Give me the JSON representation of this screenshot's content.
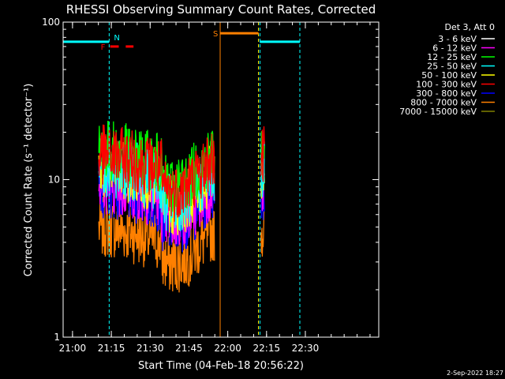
{
  "chart_data": {
    "type": "line",
    "title": "RHESSI Observing Summary Count Rates, Corrected",
    "xlabel": "Start Time (04-Feb-18 20:56:22)",
    "ylabel": "Corrected Count Rate (s⁻¹ detector⁻¹)",
    "yscale": "log",
    "ylim": [
      1,
      100
    ],
    "y_ticks": [
      1,
      10,
      100
    ],
    "x_unit": "minutes after 20:56:22",
    "xlim": [
      0,
      122
    ],
    "x_ticks": [
      {
        "t": 3.63,
        "label": "21:00"
      },
      {
        "t": 18.63,
        "label": "21:15"
      },
      {
        "t": 33.63,
        "label": "21:30"
      },
      {
        "t": 48.63,
        "label": "21:45"
      },
      {
        "t": 63.63,
        "label": "22:00"
      },
      {
        "t": 78.63,
        "label": "22:15"
      },
      {
        "t": 93.63,
        "label": "22:30"
      }
    ],
    "legend_header": "Det 3, Att 0",
    "legend_position": "outside-right",
    "series": [
      {
        "name": "3 - 6 keV",
        "color": "#ffffff",
        "level": 0
      },
      {
        "name": "6 - 12 keV",
        "color": "#ff00ff",
        "level": 8.5
      },
      {
        "name": "12 - 25 keV",
        "color": "#00ff00",
        "level": 14
      },
      {
        "name": "25 - 50 keV",
        "color": "#00ffff",
        "level": 11
      },
      {
        "name": "50 - 100 keV",
        "color": "#ffff00",
        "level": 10.5
      },
      {
        "name": "100 - 300 keV",
        "color": "#ff0000",
        "level": 13
      },
      {
        "name": "300 - 800 keV",
        "color": "#0000ff",
        "level": 8
      },
      {
        "name": "800 - 7000 keV",
        "color": "#ff8000",
        "level": 4.5
      },
      {
        "name": "7000 - 15000 keV",
        "color": "#808000",
        "level": 0
      }
    ],
    "segments": [
      {
        "start": 13.8,
        "end": 58.5
      },
      {
        "start": 76.5,
        "end": 77.8
      }
    ],
    "flags": [
      {
        "label": "N",
        "color": "#00ffff",
        "y": 75,
        "ranges": [
          [
            0,
            17.8
          ],
          [
            76,
            91.5
          ]
        ]
      },
      {
        "label": "S",
        "color": "#ff8000",
        "y": 85,
        "ranges": [
          [
            60.7,
            75.5
          ]
        ]
      },
      {
        "label": "F",
        "color": "#ff0000",
        "y": 70,
        "ranges": [
          [
            18.2,
            21.5
          ],
          [
            24.2,
            27.2
          ]
        ]
      }
    ],
    "vlines": [
      {
        "t": 0,
        "color": "#00ffff",
        "style": "solid"
      },
      {
        "t": 17.8,
        "color": "#00ffff",
        "style": "dashed"
      },
      {
        "t": 60.7,
        "color": "#ff8000",
        "style": "solid"
      },
      {
        "t": 75.5,
        "color": "#ffff00",
        "style": "dashed"
      },
      {
        "t": 76.1,
        "color": "#00ffff",
        "style": "dashed"
      },
      {
        "t": 91.5,
        "color": "#00ffff",
        "style": "dashed"
      }
    ]
  },
  "footer_timestamp": "2-Sep-2022 18:27"
}
